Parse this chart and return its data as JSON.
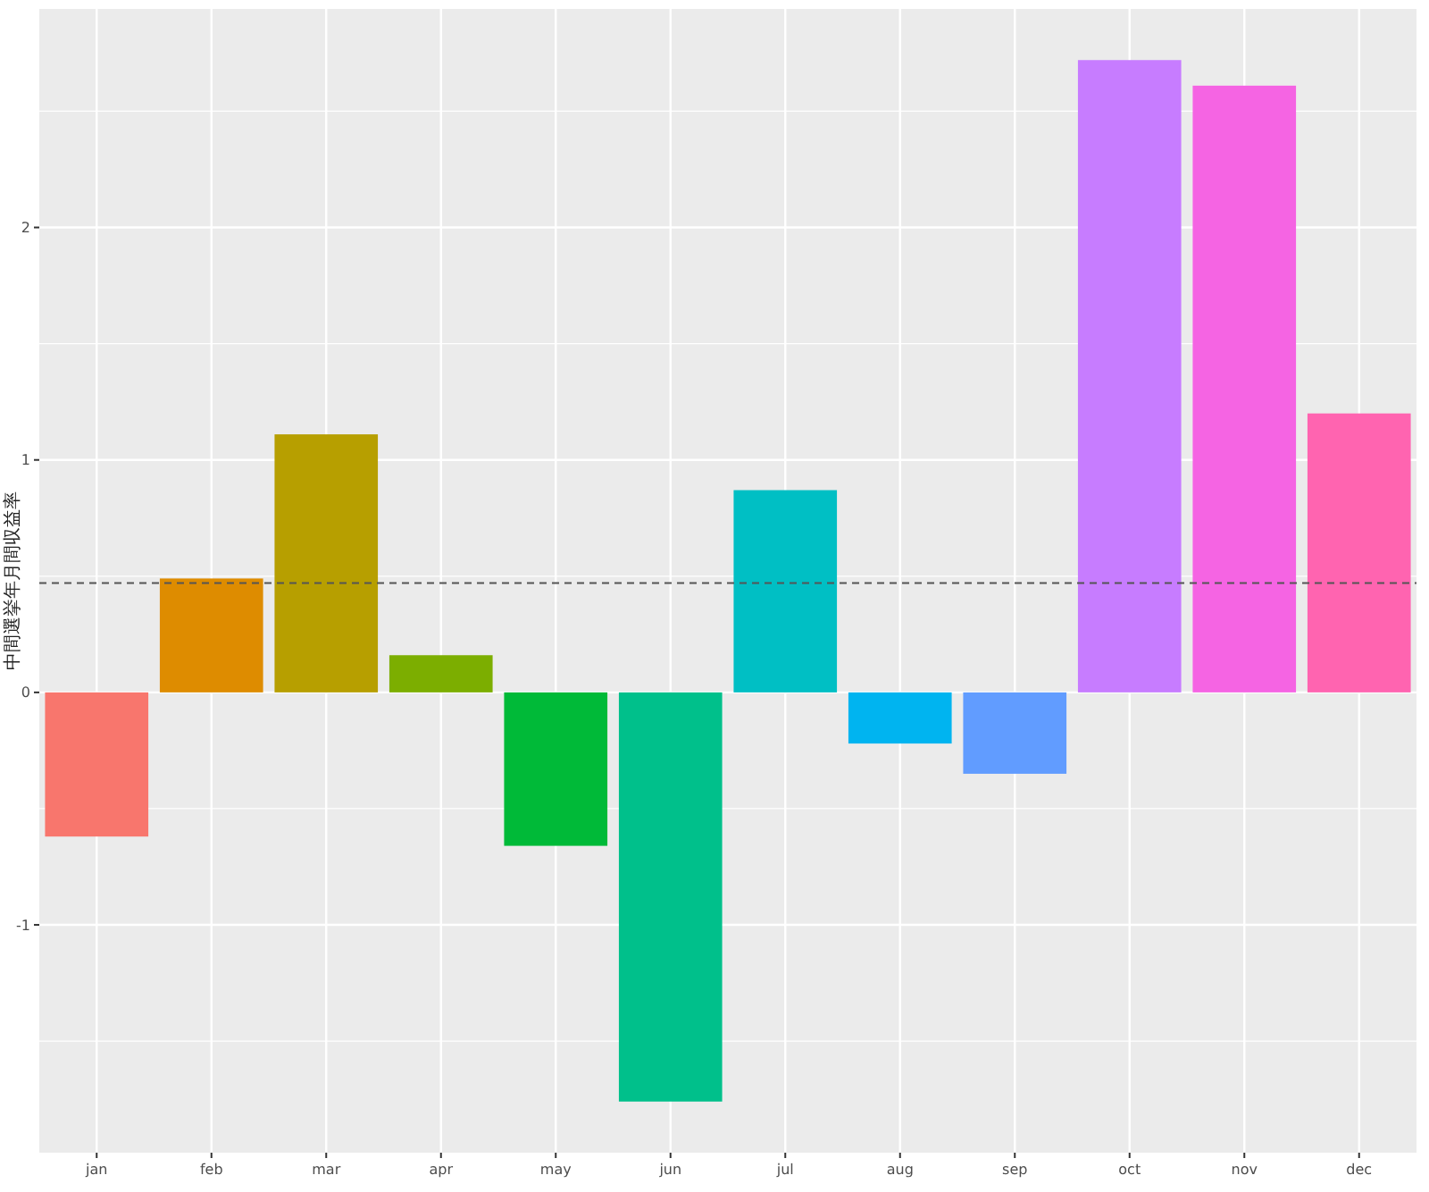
{
  "chart_data": {
    "type": "bar",
    "ylabel": "中間選挙年月間収益率",
    "categories": [
      "jan",
      "feb",
      "mar",
      "apr",
      "may",
      "jun",
      "jul",
      "aug",
      "sep",
      "oct",
      "nov",
      "dec"
    ],
    "values": [
      -0.62,
      0.49,
      1.11,
      0.16,
      -0.66,
      -1.76,
      0.87,
      -0.22,
      -0.35,
      2.72,
      2.61,
      1.2
    ],
    "colors": [
      "#f8766d",
      "#de8c00",
      "#b79f00",
      "#7cae00",
      "#00ba38",
      "#00c08b",
      "#00bfc4",
      "#00b4f0",
      "#619cff",
      "#c77cff",
      "#f564e3",
      "#ff64b0"
    ],
    "ylim": [
      -1.98,
      2.94
    ],
    "yticks": [
      {
        "value": -1.5,
        "label": null
      },
      -1,
      {
        "value": -0.5,
        "label": null
      },
      0,
      {
        "value": 0.5,
        "label": null
      },
      1,
      {
        "value": 1.5,
        "label": null
      },
      2,
      {
        "value": 2.5,
        "label": null
      }
    ],
    "grid": true,
    "ref_lines": [
      {
        "axis": "y",
        "value": 0.47,
        "line_style": "dashed",
        "color": "#555555"
      }
    ]
  }
}
